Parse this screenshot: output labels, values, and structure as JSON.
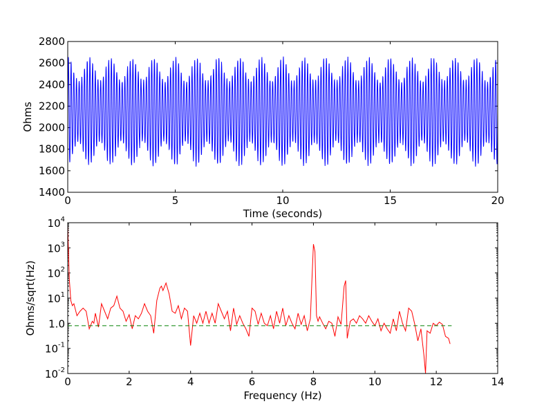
{
  "chart_data": [
    {
      "type": "line",
      "xlabel": "Time (seconds)",
      "ylabel": "Ohms",
      "xlim": [
        0,
        20
      ],
      "ylim": [
        1400,
        2800
      ],
      "x_ticks": [
        0,
        5,
        10,
        15,
        20
      ],
      "x_tick_labels": [
        "0",
        "5",
        "10",
        "15",
        "20"
      ],
      "y_ticks": [
        1400,
        1600,
        1800,
        2000,
        2200,
        2400,
        2600,
        2800
      ],
      "y_tick_labels": [
        "1400",
        "1600",
        "1800",
        "2000",
        "2200",
        "2400",
        "2600",
        "2800"
      ],
      "grid": false,
      "series": [
        {
          "color": "#0000ff",
          "description_free_signal": {
            "carrier_hz": 8.0,
            "beat_hz": 1.0,
            "mean": 2150,
            "amplitude_min": 280,
            "amplitude_max": 500,
            "peak_high": 2680,
            "peak_low": 1580
          }
        }
      ]
    },
    {
      "type": "line",
      "xlabel": "Frequency (Hz)",
      "ylabel": "Ohms/sqrt(Hz)",
      "xlim": [
        0,
        14
      ],
      "ylim": [
        0.01,
        10000
      ],
      "yscale": "log",
      "x_ticks": [
        0,
        2,
        4,
        6,
        8,
        10,
        12,
        14
      ],
      "x_tick_labels": [
        "0",
        "2",
        "4",
        "6",
        "8",
        "10",
        "12",
        "14"
      ],
      "y_ticks": [
        0.01,
        0.1,
        1,
        10,
        100,
        1000,
        10000
      ],
      "y_tick_labels": [
        {
          "base": "10",
          "exp": "-2"
        },
        {
          "base": "10",
          "exp": "-1"
        },
        {
          "base": "1.0",
          "exp": ""
        },
        {
          "base": "10",
          "exp": "1"
        },
        {
          "base": "10",
          "exp": "2"
        },
        {
          "base": "10",
          "exp": "3"
        },
        {
          "base": "10",
          "exp": "4"
        }
      ],
      "grid": false,
      "series": [
        {
          "color": "#ff0000",
          "x": [
            0.0,
            0.05,
            0.1,
            0.15,
            0.2,
            0.3,
            0.4,
            0.5,
            0.6,
            0.7,
            0.8,
            0.85,
            0.9,
            1.0,
            1.1,
            1.2,
            1.3,
            1.4,
            1.5,
            1.6,
            1.7,
            1.8,
            1.9,
            2.0,
            2.1,
            2.2,
            2.3,
            2.4,
            2.5,
            2.6,
            2.7,
            2.8,
            2.9,
            3.0,
            3.05,
            3.1,
            3.2,
            3.3,
            3.4,
            3.5,
            3.6,
            3.7,
            3.8,
            3.9,
            4.0,
            4.1,
            4.2,
            4.3,
            4.4,
            4.5,
            4.6,
            4.7,
            4.8,
            4.9,
            5.0,
            5.1,
            5.2,
            5.3,
            5.4,
            5.5,
            5.6,
            5.7,
            5.8,
            5.9,
            6.0,
            6.1,
            6.2,
            6.3,
            6.4,
            6.5,
            6.6,
            6.7,
            6.8,
            6.9,
            7.0,
            7.1,
            7.2,
            7.3,
            7.4,
            7.5,
            7.6,
            7.7,
            7.8,
            7.9,
            7.95,
            8.0,
            8.05,
            8.1,
            8.15,
            8.2,
            8.3,
            8.4,
            8.5,
            8.6,
            8.7,
            8.8,
            8.9,
            9.0,
            9.05,
            9.1,
            9.2,
            9.3,
            9.4,
            9.5,
            9.6,
            9.7,
            9.8,
            9.9,
            10.0,
            10.1,
            10.2,
            10.3,
            10.4,
            10.5,
            10.6,
            10.7,
            10.8,
            10.9,
            11.0,
            11.1,
            11.2,
            11.3,
            11.4,
            11.5,
            11.6,
            11.65,
            11.7,
            11.8,
            11.9,
            12.0,
            12.1,
            12.2,
            12.3,
            12.4,
            12.45
          ],
          "y": [
            8000,
            60,
            8,
            5,
            6,
            2,
            3,
            4,
            3,
            0.6,
            1.2,
            1.0,
            2.5,
            0.7,
            6,
            3,
            1.5,
            4,
            5,
            12,
            4,
            3,
            1.2,
            2.2,
            0.6,
            2.0,
            1.5,
            2.5,
            6,
            3,
            2,
            0.4,
            8,
            25,
            30,
            20,
            40,
            15,
            3,
            2.5,
            5,
            1.5,
            4,
            3,
            0.13,
            2,
            1.0,
            2.5,
            1.0,
            3,
            1.0,
            2.5,
            1.0,
            6,
            3,
            1.5,
            3,
            0.5,
            4,
            0.9,
            2,
            1.0,
            0.6,
            0.3,
            4,
            3,
            0.9,
            2.5,
            1.0,
            0.8,
            2,
            0.6,
            3,
            1.0,
            4,
            0.8,
            2,
            1.0,
            0.6,
            2.5,
            0.9,
            2,
            0.5,
            1.5,
            50,
            1400,
            700,
            2,
            1.2,
            1.8,
            1.0,
            0.6,
            1.2,
            1.0,
            0.3,
            1.8,
            0.9,
            30,
            50,
            0.25,
            1.2,
            1.5,
            1.0,
            2,
            1.5,
            1.0,
            2,
            1.2,
            0.8,
            1.5,
            0.5,
            1.0,
            0.6,
            0.4,
            1.5,
            0.5,
            3,
            1.0,
            0.5,
            4,
            3,
            0.9,
            0.2,
            0.6,
            0.05,
            0.01,
            0.5,
            0.4,
            1.0,
            0.8,
            1.1,
            0.9,
            0.3,
            0.25,
            0.15
          ]
        },
        {
          "color": "#008000",
          "style": "dashed",
          "x": [
            0,
            12.5
          ],
          "y": [
            0.8,
            0.8
          ]
        }
      ]
    }
  ]
}
